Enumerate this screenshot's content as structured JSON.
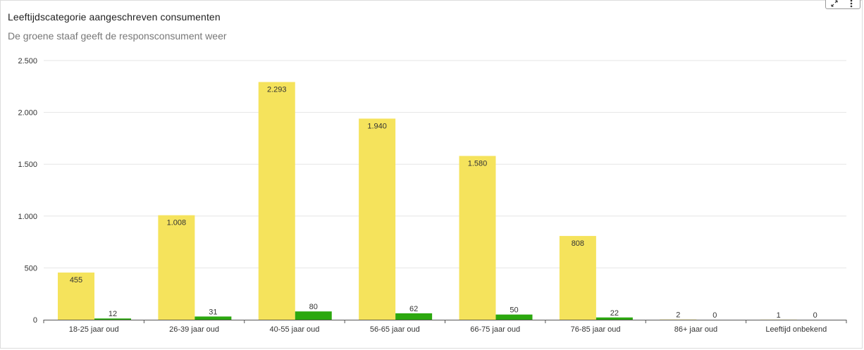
{
  "header": {
    "title": "Leeftijdscategorie aangeschreven consumenten",
    "subtitle": "De groene staaf geeft de responsconsument weer"
  },
  "toolbar": {
    "expand_icon": "expand-icon",
    "menu_icon": "more-vertical-icon"
  },
  "colors": {
    "series_1": "#f5e35c",
    "series_2": "#2ca80f",
    "grid": "#e6e6e6",
    "axis": "#555555"
  },
  "chart_data": {
    "type": "bar",
    "title": "Leeftijdscategorie aangeschreven consumenten",
    "subtitle": "De groene staaf geeft de responsconsument weer",
    "categories": [
      "18-25 jaar oud",
      "26-39 jaar oud",
      "40-55 jaar oud",
      "56-65 jaar oud",
      "66-75 jaar oud",
      "76-85 jaar oud",
      "86+ jaar oud",
      "Leeftijd onbekend"
    ],
    "series": [
      {
        "values": [
          455,
          1008,
          2293,
          1940,
          1580,
          808,
          2,
          1
        ],
        "labels": [
          "455",
          "1.008",
          "2.293",
          "1.940",
          "1.580",
          "808",
          "2",
          "1"
        ],
        "color": "#f5e35c"
      },
      {
        "values": [
          12,
          31,
          80,
          62,
          50,
          22,
          0,
          0
        ],
        "labels": [
          "12",
          "31",
          "80",
          "62",
          "50",
          "22",
          "0",
          "0"
        ],
        "color": "#2ca80f"
      }
    ],
    "yticks": [
      0,
      500,
      1000,
      1500,
      2000,
      2500
    ],
    "ytick_labels": [
      "0",
      "500",
      "1.000",
      "1.500",
      "2.000",
      "2.500"
    ],
    "ylim": [
      0,
      2500
    ],
    "xlabel": "",
    "ylabel": "",
    "grid": true,
    "legend": "none"
  }
}
